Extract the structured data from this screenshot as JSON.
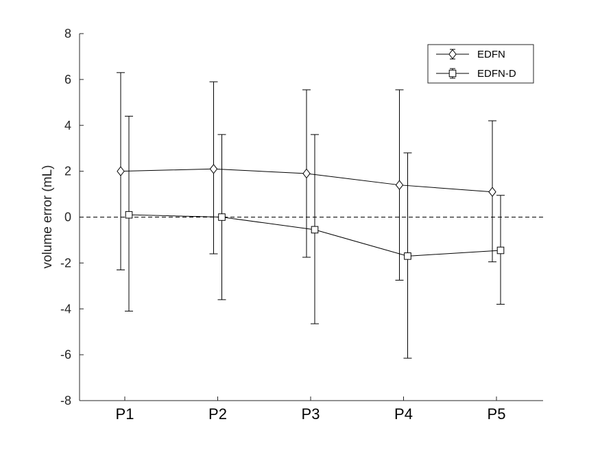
{
  "chart_data": {
    "type": "line",
    "title": "",
    "xlabel": "",
    "ylabel": "volume error (mL)",
    "categories": [
      "P1",
      "P2",
      "P3",
      "P4",
      "P5"
    ],
    "ylim": [
      -8,
      8
    ],
    "yticks": [
      -8,
      -6,
      -4,
      -2,
      0,
      2,
      4,
      6,
      8
    ],
    "grid": false,
    "reference_line": {
      "y": 0,
      "style": "dashed"
    },
    "legend_position": "top-right",
    "series": [
      {
        "name": "EDFN",
        "marker": "diamond",
        "values": [
          2.0,
          2.1,
          1.9,
          1.4,
          1.1
        ],
        "lower": [
          -2.3,
          -1.6,
          -1.75,
          -2.75,
          -1.95
        ],
        "upper": [
          6.3,
          5.9,
          5.55,
          5.55,
          4.2
        ]
      },
      {
        "name": "EDFN-D",
        "marker": "square",
        "values": [
          0.1,
          0.0,
          -0.55,
          -1.7,
          -1.45
        ],
        "lower": [
          -4.1,
          -3.6,
          -4.65,
          -6.15,
          -3.8
        ],
        "upper": [
          4.4,
          3.6,
          3.6,
          2.8,
          0.95
        ]
      }
    ]
  }
}
